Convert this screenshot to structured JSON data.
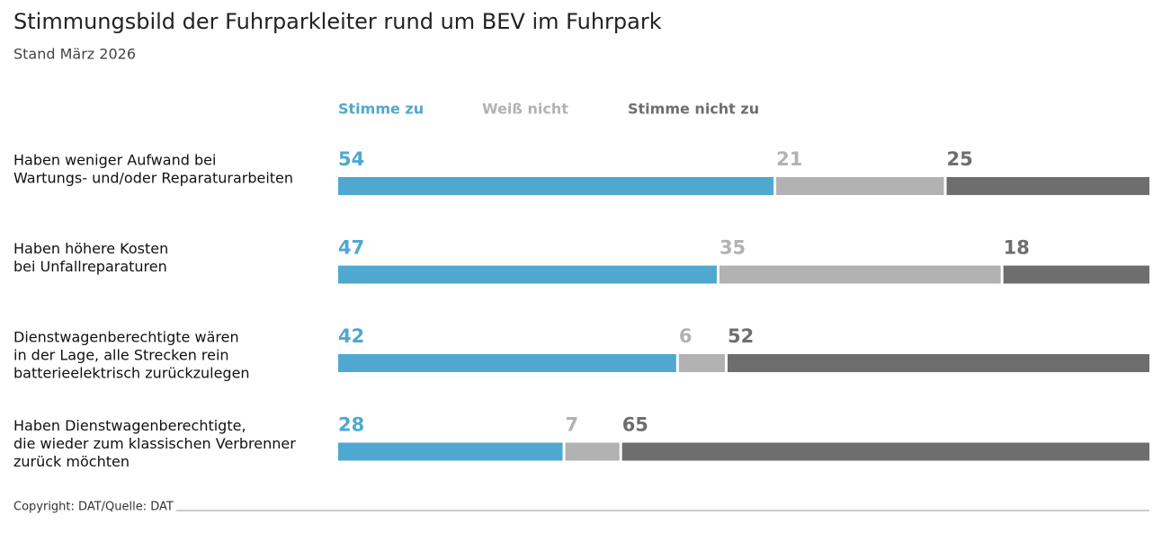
{
  "chart_data": {
    "type": "stacked-bar-horizontal",
    "title": "Stimmungsbild der Fuhrparkleiter rund um BEV im Fuhrpark",
    "subtitle": "Stand März 2026",
    "source": "Copyright: DAT/Quelle: DAT",
    "categories": [
      [
        "Haben weniger Aufwand bei",
        "Wartungs- und/oder Reparaturarbeiten"
      ],
      [
        "Haben höhere Kosten",
        "bei Unfallreparaturen"
      ],
      [
        "Dienstwagenberechtigte wären",
        "in der Lage, alle Strecken rein",
        "batterieelektrisch zurückzulegen"
      ],
      [
        "Haben Dienstwagenberechtigte,",
        "die wieder zum klassischen Verbrenner",
        "zurück möchten"
      ]
    ],
    "series": [
      {
        "name": "Stimme zu",
        "color": "#4fa8cf",
        "values": [
          54,
          47,
          42,
          28
        ]
      },
      {
        "name": "Weiß nicht",
        "color": "#b3b2b2",
        "values": [
          21,
          35,
          6,
          7
        ]
      },
      {
        "name": "Stimme nicht zu",
        "color": "#6f6e6e",
        "values": [
          25,
          18,
          52,
          65
        ]
      }
    ],
    "xlim": [
      0,
      100
    ]
  }
}
